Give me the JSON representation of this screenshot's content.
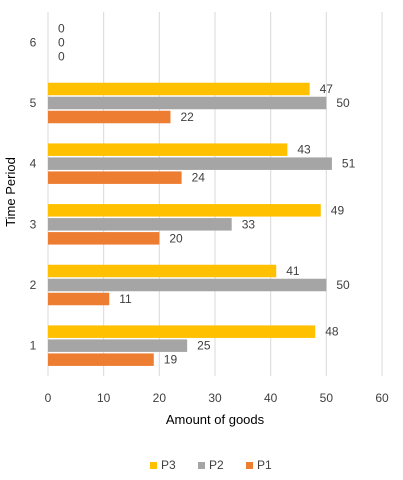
{
  "chart_data": {
    "type": "bar",
    "orientation": "horizontal",
    "title": "",
    "xlabel": "Amount of goods",
    "ylabel": "Time Period",
    "xlim": [
      0,
      60
    ],
    "x_ticks": [
      "0",
      "10",
      "20",
      "30",
      "40",
      "50",
      "60"
    ],
    "categories": [
      "1",
      "2",
      "3",
      "4",
      "5",
      "6"
    ],
    "grid": "vertical",
    "legend_position": "bottom",
    "series": [
      {
        "name": "P3",
        "color": "#FFC000",
        "values": [
          48,
          41,
          49,
          43,
          47,
          0
        ]
      },
      {
        "name": "P2",
        "color": "#A5A5A5",
        "values": [
          25,
          50,
          33,
          51,
          50,
          0
        ]
      },
      {
        "name": "P1",
        "color": "#ED7D31",
        "values": [
          19,
          11,
          20,
          24,
          22,
          0
        ]
      }
    ]
  }
}
